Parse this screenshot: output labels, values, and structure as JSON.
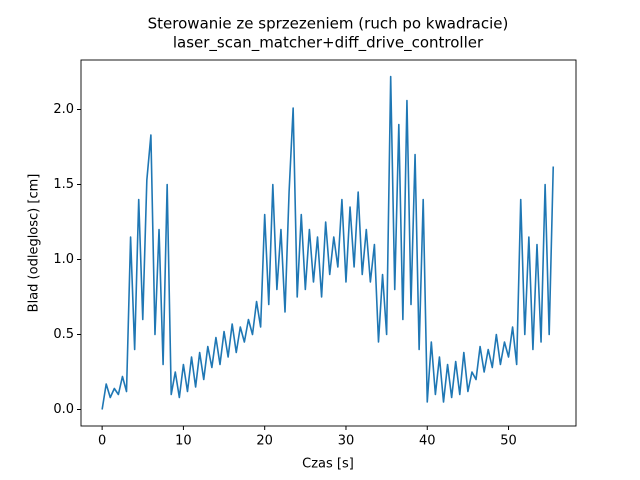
{
  "chart_data": {
    "type": "line",
    "title": "Sterowanie ze sprzezeniem (ruch po kwadracie)",
    "subtitle": "laser_scan_matcher+diff_drive_controller",
    "x_label": "Czas [s]",
    "y_label": "Blad (odleglosc) [cm]",
    "xlim": [
      -2.6,
      58.3
    ],
    "ylim": [
      -0.11,
      2.33
    ],
    "xticks": [
      0,
      10,
      20,
      30,
      40,
      50
    ],
    "yticks": [
      {
        "value": 0,
        "label": "0.0"
      },
      {
        "value": 0.5,
        "label": "0.5"
      },
      {
        "value": 1,
        "label": "1.0"
      },
      {
        "value": 1.5,
        "label": "1.5"
      },
      {
        "value": 2,
        "label": "2.0"
      }
    ],
    "x": [
      0,
      0.5,
      1,
      1.5,
      2,
      2.5,
      3,
      3.5,
      4,
      4.5,
      5,
      5.5,
      6,
      6.5,
      7,
      7.5,
      8,
      8.5,
      9,
      9.5,
      10,
      10.5,
      11,
      11.5,
      12,
      12.5,
      13,
      13.5,
      14,
      14.5,
      15,
      15.5,
      16,
      16.5,
      17,
      17.5,
      18,
      18.5,
      19,
      19.5,
      20,
      20.5,
      21,
      21.5,
      22,
      22.5,
      23,
      23.5,
      24,
      24.5,
      25,
      25.5,
      26,
      26.5,
      27,
      27.5,
      28,
      28.5,
      29,
      29.5,
      30,
      30.5,
      31,
      31.5,
      32,
      32.5,
      33,
      33.5,
      34,
      34.5,
      35,
      35.5,
      36,
      36.5,
      37,
      37.5,
      38,
      38.5,
      39,
      39.5,
      40,
      40.5,
      41,
      41.5,
      42,
      42.5,
      43,
      43.5,
      44,
      44.5,
      45,
      45.5,
      46,
      46.5,
      47,
      47.5,
      48,
      48.5,
      49,
      49.5,
      50,
      50.5,
      51,
      51.5,
      52,
      52.5,
      53,
      53.5,
      54,
      54.5,
      55,
      55.5
    ],
    "series": [
      {
        "color": "#1f77b4",
        "values": [
          0.0,
          0.17,
          0.08,
          0.14,
          0.1,
          0.22,
          0.12,
          1.15,
          0.4,
          1.4,
          0.6,
          1.53,
          1.83,
          0.5,
          1.2,
          0.3,
          1.5,
          0.1,
          0.25,
          0.08,
          0.3,
          0.12,
          0.35,
          0.15,
          0.38,
          0.2,
          0.42,
          0.28,
          0.48,
          0.3,
          0.52,
          0.35,
          0.57,
          0.38,
          0.55,
          0.45,
          0.6,
          0.5,
          0.72,
          0.55,
          1.3,
          0.7,
          1.5,
          0.8,
          1.2,
          0.65,
          1.45,
          2.01,
          0.75,
          1.3,
          0.8,
          1.2,
          0.85,
          1.15,
          0.75,
          1.25,
          0.9,
          1.15,
          0.95,
          1.4,
          0.85,
          1.35,
          0.95,
          1.45,
          0.9,
          1.2,
          0.85,
          1.1,
          0.45,
          0.9,
          0.5,
          2.22,
          0.8,
          1.9,
          0.6,
          2.06,
          0.7,
          1.7,
          0.4,
          1.4,
          0.05,
          0.45,
          0.1,
          0.35,
          0.05,
          0.3,
          0.08,
          0.32,
          0.1,
          0.38,
          0.12,
          0.25,
          0.2,
          0.42,
          0.25,
          0.4,
          0.28,
          0.5,
          0.3,
          0.45,
          0.35,
          0.55,
          0.3,
          1.4,
          0.5,
          1.15,
          0.4,
          1.1,
          0.45,
          1.5,
          0.5,
          1.62
        ]
      }
    ]
  }
}
